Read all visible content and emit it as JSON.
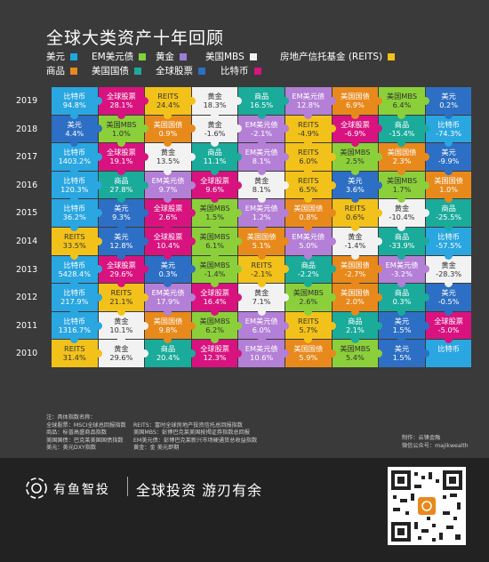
{
  "title": "全球大类资产十年回顾",
  "legend": [
    {
      "label": "美元",
      "color": "#1aa9e0"
    },
    {
      "label": "EM美元债",
      "color": "#7ed33a"
    },
    {
      "label": "黄金",
      "color": "#9b7fd6"
    },
    {
      "label": "美国MBS",
      "color": "#f2f2f2"
    },
    {
      "label": "房地产信托基金 (REITS)",
      "color": "#f2c21a"
    },
    {
      "label": "商品",
      "color": "#e8891c"
    },
    {
      "label": "美国国债",
      "color": "#1aab9b"
    },
    {
      "label": "全球股票",
      "color": "#2d6fc4"
    },
    {
      "label": "比特币",
      "color": "#d8137f"
    }
  ],
  "chart_data": {
    "type": "table",
    "years": [
      "2019",
      "2018",
      "2017",
      "2016",
      "2015",
      "2014",
      "2013",
      "2012",
      "2011",
      "2010"
    ],
    "rows": [
      [
        [
          "比特币",
          "94.8%"
        ],
        [
          "全球股票",
          "28.1%"
        ],
        [
          "REITS",
          "24.4%"
        ],
        [
          "黄金",
          "18.3%"
        ],
        [
          "商品",
          "16.5%"
        ],
        [
          "EM美元债",
          "12.8%"
        ],
        [
          "美国国债",
          "6.9%"
        ],
        [
          "美国MBS",
          "6.4%"
        ],
        [
          "美元",
          "0.2%"
        ]
      ],
      [
        [
          "美元",
          "4.4%"
        ],
        [
          "美国MBS",
          "1.0%"
        ],
        [
          "美国国债",
          "0.9%"
        ],
        [
          "黄金",
          "-1.6%"
        ],
        [
          "EM美元债",
          "-2.1%"
        ],
        [
          "REITS",
          "-4.9%"
        ],
        [
          "全球股票",
          "-6.9%"
        ],
        [
          "商品",
          "-15.4%"
        ],
        [
          "比特币",
          "-74.3%"
        ]
      ],
      [
        [
          "比特币",
          "1403.2%"
        ],
        [
          "全球股票",
          "19.1%"
        ],
        [
          "黄金",
          "13.5%"
        ],
        [
          "商品",
          "11.1%"
        ],
        [
          "EM美元债",
          "8.1%"
        ],
        [
          "REITS",
          "6.0%"
        ],
        [
          "美国MBS",
          "2.5%"
        ],
        [
          "美国国债",
          "2.3%"
        ],
        [
          "美元",
          "-9.9%"
        ]
      ],
      [
        [
          "比特币",
          "120.3%"
        ],
        [
          "商品",
          "27.8%"
        ],
        [
          "EM美元债",
          "9.7%"
        ],
        [
          "全球股票",
          "9.6%"
        ],
        [
          "黄金",
          "8.1%"
        ],
        [
          "REITS",
          "6.5%"
        ],
        [
          "美元",
          "3.6%"
        ],
        [
          "美国MBS",
          "1.7%"
        ],
        [
          "美国国债",
          "1.0%"
        ]
      ],
      [
        [
          "比特币",
          "36.2%"
        ],
        [
          "美元",
          "9.3%"
        ],
        [
          "全球股票",
          "2.6%"
        ],
        [
          "美国MBS",
          "1.5%"
        ],
        [
          "EM美元债",
          "1.2%"
        ],
        [
          "美国国债",
          "0.8%"
        ],
        [
          "REITS",
          "0.6%"
        ],
        [
          "黄金",
          "-10.4%"
        ],
        [
          "商品",
          "-25.5%"
        ]
      ],
      [
        [
          "REITS",
          "33.5%"
        ],
        [
          "美元",
          "12.8%"
        ],
        [
          "全球股票",
          "10.4%"
        ],
        [
          "美国MBS",
          "6.1%"
        ],
        [
          "美国国债",
          "5.1%"
        ],
        [
          "EM美元债",
          "5.0%"
        ],
        [
          "黄金",
          "-1.4%"
        ],
        [
          "商品",
          "-33.9%"
        ],
        [
          "比特币",
          "-57.5%"
        ]
      ],
      [
        [
          "比特币",
          "5428.4%"
        ],
        [
          "全球股票",
          "29.6%"
        ],
        [
          "美元",
          "0.3%"
        ],
        [
          "美国MBS",
          "-1.4%"
        ],
        [
          "REITS",
          "-2.1%"
        ],
        [
          "商品",
          "-2.2%"
        ],
        [
          "美国国债",
          "-2.7%"
        ],
        [
          "EM美元债",
          "-3.2%"
        ],
        [
          "黄金",
          "-28.3%"
        ]
      ],
      [
        [
          "比特币",
          "217.9%"
        ],
        [
          "REITS",
          "21.1%"
        ],
        [
          "EM美元债",
          "17.9%"
        ],
        [
          "全球股票",
          "16.4%"
        ],
        [
          "黄金",
          "7.1%"
        ],
        [
          "美国MBS",
          "2.6%"
        ],
        [
          "美国国债",
          "2.0%"
        ],
        [
          "商品",
          "0.3%"
        ],
        [
          "美元",
          "-0.5%"
        ]
      ],
      [
        [
          "比特币",
          "1316.7%"
        ],
        [
          "黄金",
          "10.1%"
        ],
        [
          "美国国债",
          "9.8%"
        ],
        [
          "美国MBS",
          "6.2%"
        ],
        [
          "EM美元债",
          "6.0%"
        ],
        [
          "REITS",
          "5.7%"
        ],
        [
          "商品",
          "2.1%"
        ],
        [
          "美元",
          "1.5%"
        ],
        [
          "全球股票",
          "-5.0%"
        ]
      ],
      [
        [
          "REITS",
          "31.4%"
        ],
        [
          "黄金",
          "29.6%"
        ],
        [
          "商品",
          "20.4%"
        ],
        [
          "全球股票",
          "12.3%"
        ],
        [
          "EM美元债",
          "10.6%"
        ],
        [
          "美国国债",
          "5.9%"
        ],
        [
          "美国MBS",
          "5.4%"
        ],
        [
          "美元",
          "1.5%"
        ],
        [
          "比特币",
          ""
        ]
      ]
    ]
  },
  "asset_colors": {
    "比特币": "#2aa6e0",
    "全球股票": "#d8137f",
    "REITS": "#f2c21a",
    "黄金": "#f2f2f2",
    "商品": "#1aab9b",
    "EM美元债": "#b47fd6",
    "美国国债": "#e8891c",
    "美国MBS": "#8bd03a",
    "美元": "#2d6fc4"
  },
  "notes": {
    "col1": [
      "注：具体指数名称：",
      "全球股票：MSCI全球总回报指数",
      "商品：标普高盛商品指数",
      "美国国债：巴克莱美国国债指数",
      "美元：美元DXY指数"
    ],
    "col2": [
      "REITS：富时全球房地产投资信托总回报指数",
      "美国MBS：彭博巴克莱美国按揭证券指数总回报",
      "EM美元债：彭博巴克莱新兴市场硬通货总收益指数",
      "黄金：金 美元即期"
    ],
    "credits": [
      "制作：云锋金融",
      "微信公众号：majikwealth"
    ]
  },
  "footer": {
    "brand": "有鱼智投",
    "slogan": "全球投资 游刃有余"
  }
}
